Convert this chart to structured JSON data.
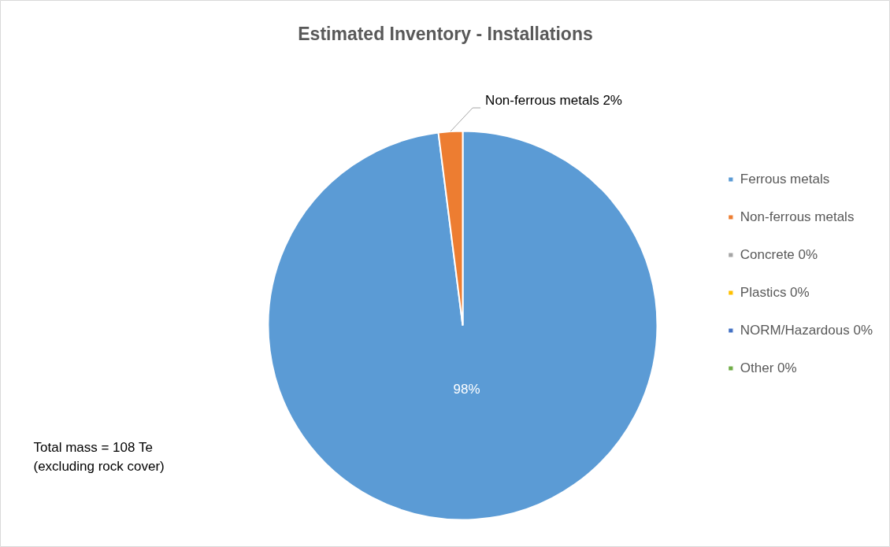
{
  "chart_data": {
    "type": "pie",
    "title": "Estimated Inventory - Installations",
    "categories": [
      "Ferrous metals",
      "Non-ferrous metals",
      "Concrete 0%",
      "Plastics 0%",
      "NORM/Hazardous 0%",
      "Other 0%"
    ],
    "values": [
      98,
      2,
      0,
      0,
      0,
      0
    ],
    "colors": [
      "#5b9bd5",
      "#ed7d31",
      "#a5a5a5",
      "#ffc000",
      "#4472c4",
      "#70ad47"
    ],
    "value_labels": [
      "98%",
      "Non-ferrous metals 2%",
      null,
      null,
      null,
      null
    ],
    "legend": "right",
    "annotations": [
      "Total mass = 108 Te",
      "(excluding rock cover)"
    ]
  }
}
